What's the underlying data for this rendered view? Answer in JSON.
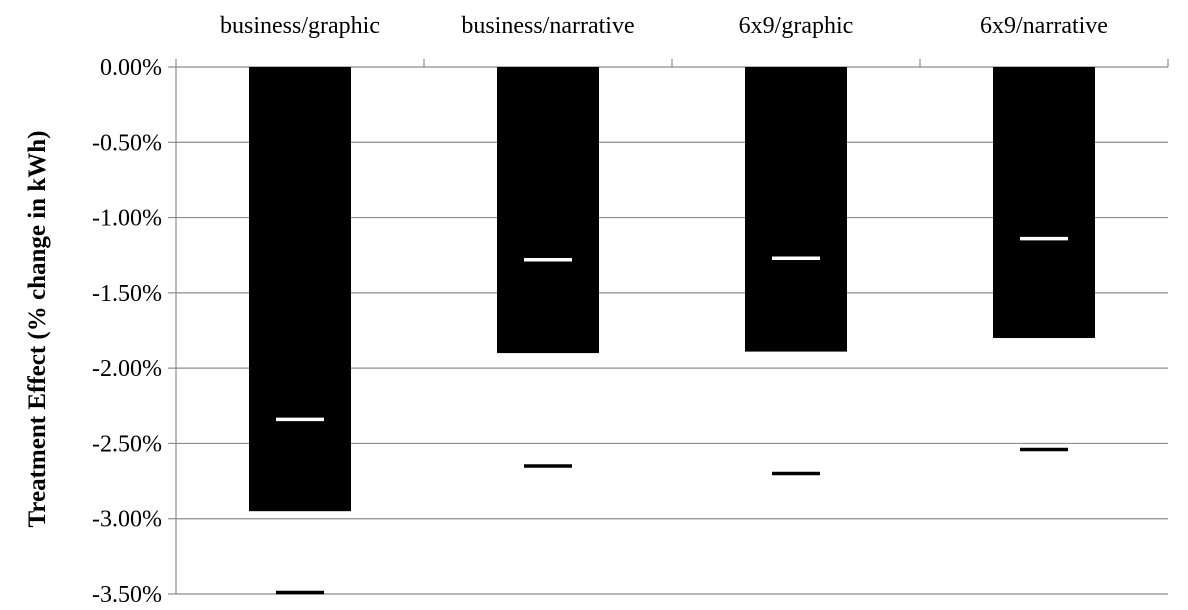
{
  "chart_data": {
    "type": "bar",
    "title": "",
    "xlabel": "",
    "ylabel": "Treatment Effect (% change in kWh)",
    "ylim": [
      -3.5,
      0
    ],
    "y_ticks": [
      0,
      -0.5,
      -1.0,
      -1.5,
      -2.0,
      -2.5,
      -3.0,
      -3.5
    ],
    "y_tick_labels": [
      "0.00%",
      "-0.50%",
      "-1.00%",
      "-1.50%",
      "-2.00%",
      "-2.50%",
      "-3.00%",
      "-3.50%"
    ],
    "grid": true,
    "x_axis_position": "top",
    "categories": [
      "business/graphic",
      "business/narrative",
      "6x9/graphic",
      "6x9/narrative"
    ],
    "values": [
      -2.95,
      -1.9,
      -1.89,
      -1.8
    ],
    "point_estimate": [
      -2.34,
      -1.28,
      -1.27,
      -1.14
    ],
    "lower_bound": [
      -3.49,
      -2.65,
      -2.7,
      -2.54
    ],
    "colors": {
      "bar": "#000000",
      "estimate_marker": "#ffffff",
      "lower_marker": "#000000",
      "grid": "#8c8c8c"
    }
  }
}
